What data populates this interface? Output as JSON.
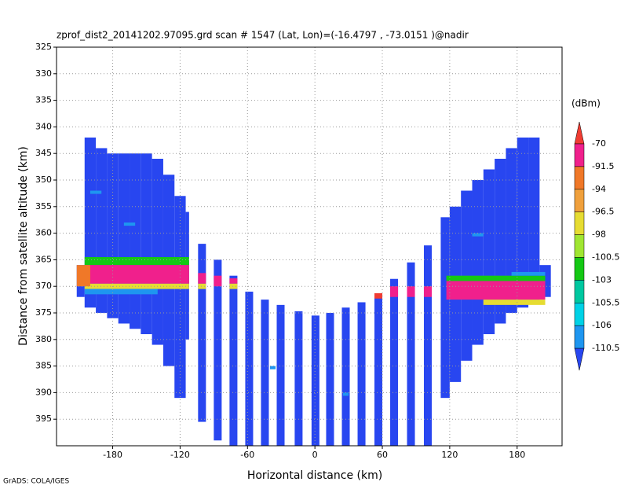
{
  "chart_data": {
    "type": "heatmap",
    "title": "zprof_dist2_20141202.97095.grd  scan # 1547  (Lat, Lon)=(-16.4797 , -73.0151 )@nadir",
    "x_label": "Horizontal distance (km)",
    "y_label": "Distance from satellite altitude (km)",
    "colorbar_label": "(dBm)",
    "footer": "GrADS: COLA/IGES",
    "xlim": [
      -230,
      220
    ],
    "ylim": [
      325,
      400
    ],
    "y_reversed": true,
    "grid": true,
    "xticks": [
      -180,
      -120,
      -60,
      0,
      60,
      120,
      180
    ],
    "yticks": [
      325,
      330,
      335,
      340,
      345,
      350,
      355,
      360,
      365,
      370,
      375,
      380,
      385,
      390,
      395
    ],
    "levels": [
      -70,
      -91.5,
      -94,
      -96.5,
      -98,
      -100.5,
      -103,
      -105.5,
      -106,
      -110.5
    ],
    "colors": [
      "#f03c32",
      "#f0208c",
      "#f07828",
      "#f0a03c",
      "#e6dc32",
      "#a0e632",
      "#14c814",
      "#00c8a0",
      "#00d2e6",
      "#1e96f0",
      "#2846f0"
    ],
    "cells": [
      {
        "x": [
          -212,
          -205
        ],
        "y": [
          366,
          372
        ],
        "value": -112
      },
      {
        "x": [
          -205,
          -195
        ],
        "y": [
          342,
          374
        ],
        "value": -112
      },
      {
        "x": [
          -195,
          -185
        ],
        "y": [
          344,
          375
        ],
        "value": -112
      },
      {
        "x": [
          -185,
          -175
        ],
        "y": [
          345,
          376
        ],
        "value": -112
      },
      {
        "x": [
          -175,
          -165
        ],
        "y": [
          345,
          377
        ],
        "value": -112
      },
      {
        "x": [
          -165,
          -155
        ],
        "y": [
          345,
          378
        ],
        "value": -112
      },
      {
        "x": [
          -155,
          -145
        ],
        "y": [
          345,
          379
        ],
        "value": -112
      },
      {
        "x": [
          -145,
          -135
        ],
        "y": [
          346,
          381
        ],
        "value": -112
      },
      {
        "x": [
          -135,
          -125
        ],
        "y": [
          349,
          385
        ],
        "value": -112
      },
      {
        "x": [
          -125,
          -115
        ],
        "y": [
          353,
          391
        ],
        "value": -112
      },
      {
        "x": [
          -115,
          -112
        ],
        "y": [
          356,
          380
        ],
        "value": -112
      },
      {
        "x": [
          112,
          120
        ],
        "y": [
          357,
          391
        ],
        "value": -112
      },
      {
        "x": [
          120,
          130
        ],
        "y": [
          355,
          388
        ],
        "value": -112
      },
      {
        "x": [
          130,
          140
        ],
        "y": [
          352,
          384
        ],
        "value": -112
      },
      {
        "x": [
          140,
          150
        ],
        "y": [
          350,
          381
        ],
        "value": -112
      },
      {
        "x": [
          150,
          160
        ],
        "y": [
          348,
          379
        ],
        "value": -112
      },
      {
        "x": [
          160,
          170
        ],
        "y": [
          346,
          377
        ],
        "value": -112
      },
      {
        "x": [
          170,
          180
        ],
        "y": [
          344,
          375
        ],
        "value": -112
      },
      {
        "x": [
          180,
          190
        ],
        "y": [
          342,
          374
        ],
        "value": -112
      },
      {
        "x": [
          190,
          200
        ],
        "y": [
          342,
          373
        ],
        "value": -112
      },
      {
        "x": [
          200,
          210
        ],
        "y": [
          366,
          372
        ],
        "value": -112
      },
      {
        "x": [
          -104,
          -97
        ],
        "y": [
          362,
          395.5
        ],
        "value": -112
      },
      {
        "x": [
          -90,
          -83
        ],
        "y": [
          365,
          399
        ],
        "value": -112
      },
      {
        "x": [
          -76,
          -69
        ],
        "y": [
          368,
          400
        ],
        "value": -112
      },
      {
        "x": [
          -62,
          -55
        ],
        "y": [
          371,
          400
        ],
        "value": -112
      },
      {
        "x": [
          -48,
          -41
        ],
        "y": [
          372.5,
          400
        ],
        "value": -112
      },
      {
        "x": [
          -34,
          -27
        ],
        "y": [
          373.5,
          400
        ],
        "value": -112
      },
      {
        "x": [
          -18,
          -11
        ],
        "y": [
          374.7,
          400
        ],
        "value": -112
      },
      {
        "x": [
          -3,
          4
        ],
        "y": [
          375.5,
          400
        ],
        "value": -112
      },
      {
        "x": [
          10,
          17
        ],
        "y": [
          375,
          400
        ],
        "value": -112
      },
      {
        "x": [
          24,
          31
        ],
        "y": [
          374,
          400
        ],
        "value": -112
      },
      {
        "x": [
          38,
          45
        ],
        "y": [
          373,
          400
        ],
        "value": -112
      },
      {
        "x": [
          53,
          60
        ],
        "y": [
          371.7,
          400
        ],
        "value": -112
      },
      {
        "x": [
          67,
          74
        ],
        "y": [
          368.6,
          400
        ],
        "value": -112
      },
      {
        "x": [
          82,
          89
        ],
        "y": [
          365.5,
          400
        ],
        "value": -112
      },
      {
        "x": [
          97,
          104
        ],
        "y": [
          362.3,
          400
        ],
        "value": -112
      },
      {
        "x": [
          -205,
          -112
        ],
        "y": [
          364.5,
          366
        ],
        "value": -102
      },
      {
        "x": [
          -205,
          -112
        ],
        "y": [
          366,
          369.5
        ],
        "value": -85
      },
      {
        "x": [
          -205,
          -112
        ],
        "y": [
          369.5,
          370.5
        ],
        "value": -97
      },
      {
        "x": [
          -205,
          -140
        ],
        "y": [
          370.5,
          371.5
        ],
        "value": -108
      },
      {
        "x": [
          -212,
          -200
        ],
        "y": [
          366,
          370
        ],
        "value": -93
      },
      {
        "x": [
          -104,
          -97
        ],
        "y": [
          367.5,
          369.5
        ],
        "value": -85
      },
      {
        "x": [
          -104,
          -97
        ],
        "y": [
          369.5,
          370.5
        ],
        "value": -97
      },
      {
        "x": [
          -90,
          -83
        ],
        "y": [
          368,
          370
        ],
        "value": -85
      },
      {
        "x": [
          -76,
          -69
        ],
        "y": [
          368.5,
          369.5
        ],
        "value": -85
      },
      {
        "x": [
          -76,
          -69
        ],
        "y": [
          369.5,
          370.5
        ],
        "value": -97
      },
      {
        "x": [
          53,
          60
        ],
        "y": [
          371.3,
          372.3
        ],
        "value": -68
      },
      {
        "x": [
          67,
          74
        ],
        "y": [
          370,
          372
        ],
        "value": -85
      },
      {
        "x": [
          82,
          89
        ],
        "y": [
          370,
          372
        ],
        "value": -85
      },
      {
        "x": [
          97,
          104
        ],
        "y": [
          370,
          372
        ],
        "value": -85
      },
      {
        "x": [
          117,
          205
        ],
        "y": [
          368,
          369
        ],
        "value": -102
      },
      {
        "x": [
          117,
          205
        ],
        "y": [
          369,
          372.5
        ],
        "value": -85
      },
      {
        "x": [
          150,
          205
        ],
        "y": [
          372.5,
          373.5
        ],
        "value": -97
      },
      {
        "x": [
          175,
          205
        ],
        "y": [
          367.3,
          368
        ],
        "value": -108
      },
      {
        "x": [
          -200,
          -190
        ],
        "y": [
          352,
          352.6
        ],
        "value": -108
      },
      {
        "x": [
          -170,
          -160
        ],
        "y": [
          358,
          358.6
        ],
        "value": -108
      },
      {
        "x": [
          140,
          150
        ],
        "y": [
          360,
          360.6
        ],
        "value": -108
      },
      {
        "x": [
          -40,
          -35
        ],
        "y": [
          385,
          385.6
        ],
        "value": -108
      },
      {
        "x": [
          25,
          30
        ],
        "y": [
          390,
          390.6
        ],
        "value": -108
      }
    ]
  }
}
